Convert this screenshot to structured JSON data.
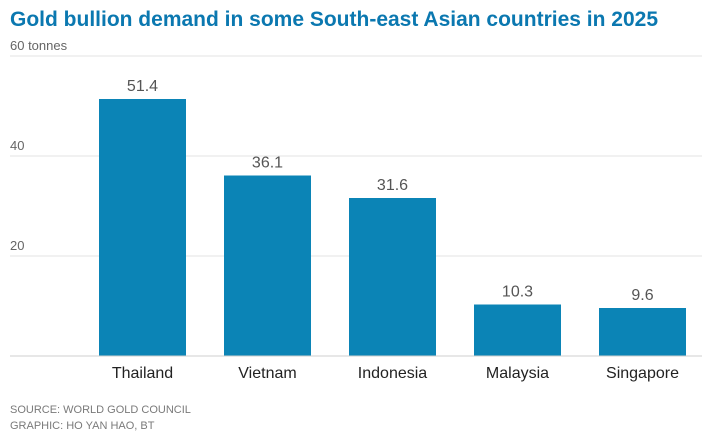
{
  "chart_data": {
    "type": "bar",
    "title": "Gold bullion demand in some South-east Asian countries in 2025",
    "unit_label": "tonnes",
    "categories": [
      "Thailand",
      "Vietnam",
      "Indonesia",
      "Malaysia",
      "Singapore"
    ],
    "values": [
      51.4,
      36.1,
      31.6,
      10.3,
      9.6
    ],
    "value_labels": [
      "51.4",
      "36.1",
      "31.6",
      "10.3",
      "9.6"
    ],
    "ylim": [
      0,
      60
    ],
    "yticks": [
      20,
      40,
      60
    ],
    "ytick_labels": [
      "20",
      "40",
      "60 tonnes"
    ],
    "grid": true,
    "bar_color": "#0b84b6",
    "title_color": "#0b78b0"
  },
  "footer": {
    "source": "SOURCE: WORLD GOLD COUNCIL",
    "graphic": "GRAPHIC: HO YAN HAO, BT"
  }
}
